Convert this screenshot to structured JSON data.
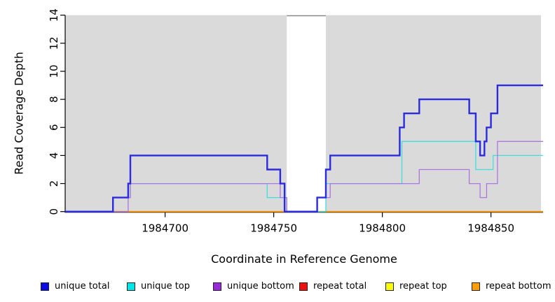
{
  "chart_data": {
    "type": "line",
    "step": true,
    "title": "",
    "xlabel": "Coordinate in Reference Genome",
    "ylabel": "Read Coverage Depth",
    "xlim": [
      1984654,
      1984874
    ],
    "ylim": [
      0,
      14
    ],
    "x_ticks": [
      1984700,
      1984750,
      1984800,
      1984850
    ],
    "y_ticks": [
      0,
      2,
      4,
      6,
      8,
      10,
      12,
      14
    ],
    "grid": false,
    "panel_bg": "#DADADA",
    "axis_color": "#000000",
    "masked_region": {
      "x0": 1984756,
      "x1": 1984774,
      "color": "#FFFFFF",
      "top_border": "#8A8A8A"
    },
    "legend_position": "bottom",
    "series": [
      {
        "name": "unique total",
        "color": "#2A2AE0",
        "width": 2.4,
        "z": 6,
        "points": [
          [
            1984654,
            0
          ],
          [
            1984676,
            1
          ],
          [
            1984683,
            2
          ],
          [
            1984684,
            4
          ],
          [
            1984747,
            3
          ],
          [
            1984753,
            2
          ],
          [
            1984755,
            0
          ],
          [
            1984770,
            1
          ],
          [
            1984774,
            3
          ],
          [
            1984776,
            4
          ],
          [
            1984808,
            6
          ],
          [
            1984810,
            7
          ],
          [
            1984817,
            8
          ],
          [
            1984840,
            7
          ],
          [
            1984843,
            5
          ],
          [
            1984845,
            4
          ],
          [
            1984847,
            5
          ],
          [
            1984848,
            6
          ],
          [
            1984850,
            7
          ],
          [
            1984853,
            9
          ]
        ]
      },
      {
        "name": "unique top",
        "color": "#3FDEDE",
        "width": 1.3,
        "z": 4,
        "points": [
          [
            1984654,
            0
          ],
          [
            1984676,
            1
          ],
          [
            1984684,
            2
          ],
          [
            1984747,
            1
          ],
          [
            1984756,
            0
          ],
          [
            1984774,
            2
          ],
          [
            1984809,
            5
          ],
          [
            1984843,
            3
          ],
          [
            1984851,
            4
          ]
        ]
      },
      {
        "name": "unique bottom",
        "color": "#AC75DF",
        "width": 1.3,
        "z": 5,
        "points": [
          [
            1984654,
            0
          ],
          [
            1984683,
            1
          ],
          [
            1984684,
            2
          ],
          [
            1984753,
            1
          ],
          [
            1984756,
            0
          ],
          [
            1984770,
            1
          ],
          [
            1984776,
            2
          ],
          [
            1984817,
            3
          ],
          [
            1984840,
            2
          ],
          [
            1984845,
            1
          ],
          [
            1984848,
            2
          ],
          [
            1984853,
            5
          ]
        ]
      },
      {
        "name": "repeat total",
        "color": "#E02020",
        "width": 1.3,
        "z": 1,
        "points": [
          [
            1984654,
            0
          ]
        ]
      },
      {
        "name": "repeat top",
        "color": "#F5F500",
        "width": 1.3,
        "z": 2,
        "points": [
          [
            1984654,
            0
          ]
        ]
      },
      {
        "name": "repeat bottom",
        "color": "#FF9D00",
        "width": 1.8,
        "z": 3,
        "points": [
          [
            1984654,
            0
          ]
        ]
      }
    ],
    "legend": [
      {
        "label": "unique total",
        "color": "#0B0BE8"
      },
      {
        "label": "unique top",
        "color": "#00E5E5"
      },
      {
        "label": "unique bottom",
        "color": "#982ADB"
      },
      {
        "label": "repeat total",
        "color": "#EE1111"
      },
      {
        "label": "repeat top",
        "color": "#FCFC00"
      },
      {
        "label": "repeat bottom",
        "color": "#FF9E00"
      }
    ]
  }
}
